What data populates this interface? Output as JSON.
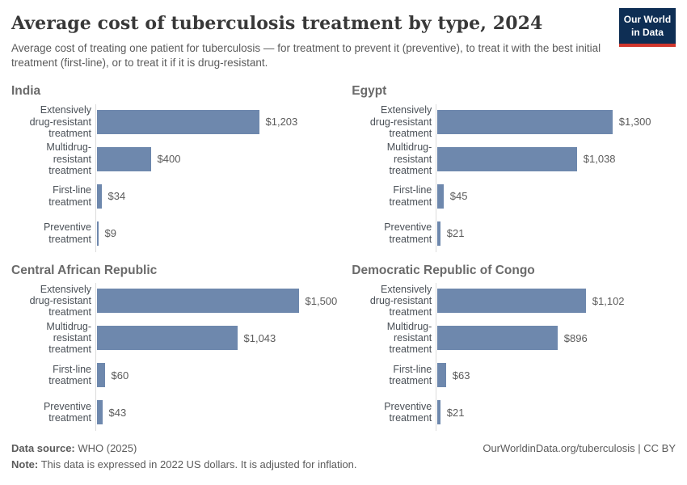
{
  "header": {
    "title": "Average cost of tuberculosis treatment by type, 2024",
    "subtitle": "Average cost of treating one patient for tuberculosis — for treatment to prevent it (preventive), to treat it with the best initial treatment (first-line), or to treat it if it is drug-resistant.",
    "logo": {
      "line1": "Our World",
      "line2": "in Data"
    }
  },
  "chart_data": {
    "type": "bar",
    "orientation": "horizontal",
    "layout": "small-multiples (2x2 grid), shared x scale",
    "unit": "US dollars (2022, inflation-adjusted)",
    "x_max": 1500,
    "grid": "off",
    "bar_color": "#6e88ad",
    "categories": [
      "Extensively drug-resistant treatment",
      "Multidrug-resistant treatment",
      "First-line treatment",
      "Preventive treatment"
    ],
    "category_lines": [
      [
        "Extensively",
        "drug-resistant",
        "treatment"
      ],
      [
        "Multidrug-resistant",
        "treatment"
      ],
      [
        "First-line treatment"
      ],
      [
        "Preventive",
        "treatment"
      ]
    ],
    "panels": [
      {
        "country": "India",
        "values": [
          1203,
          400,
          34,
          9
        ],
        "value_labels": [
          "$1,203",
          "$400",
          "$34",
          "$9"
        ]
      },
      {
        "country": "Egypt",
        "values": [
          1300,
          1038,
          45,
          21
        ],
        "value_labels": [
          "$1,300",
          "$1,038",
          "$45",
          "$21"
        ]
      },
      {
        "country": "Central African Republic",
        "values": [
          1500,
          1043,
          60,
          43
        ],
        "value_labels": [
          "$1,500",
          "$1,043",
          "$60",
          "$43"
        ]
      },
      {
        "country": "Democratic Republic of Congo",
        "values": [
          1102,
          896,
          63,
          21
        ],
        "value_labels": [
          "$1,102",
          "$896",
          "$63",
          "$21"
        ]
      }
    ]
  },
  "footer": {
    "source_label": "Data source:",
    "source_text": " WHO (2025)",
    "note_label": "Note:",
    "note_text": " This data is expressed in 2022 US dollars. It is adjusted for inflation.",
    "link": "OurWorldinData.org/tuberculosis | CC BY"
  }
}
